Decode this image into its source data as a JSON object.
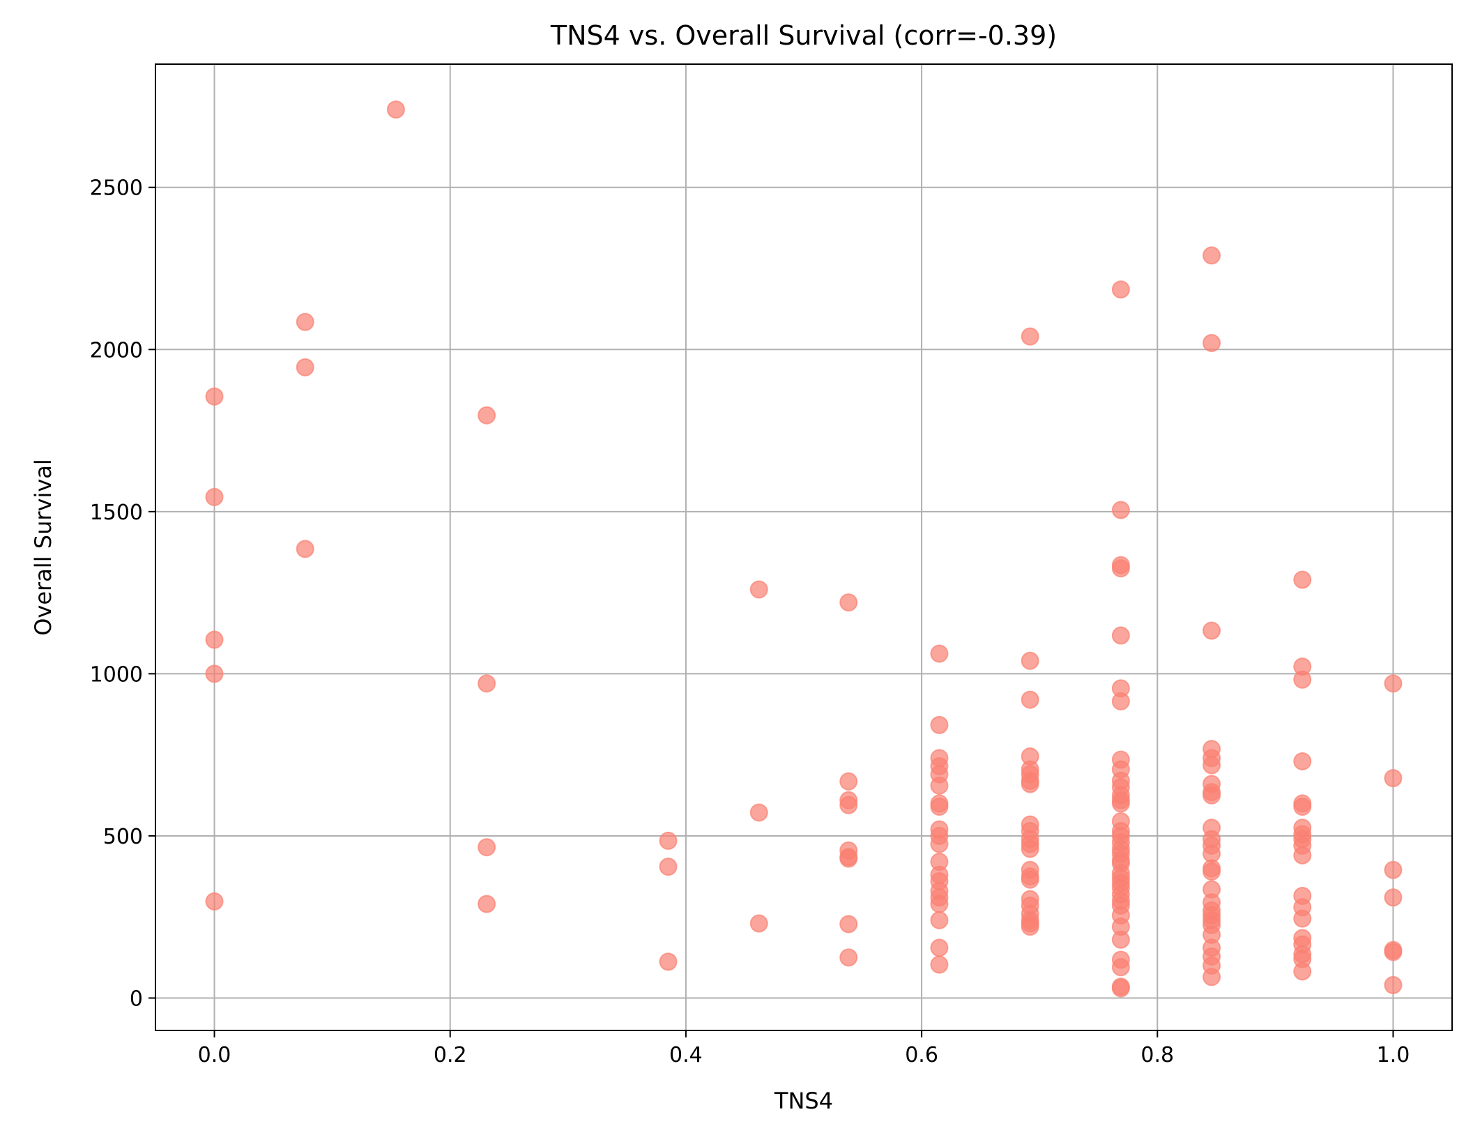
{
  "chart_data": {
    "type": "scatter",
    "title": "TNS4 vs. Overall Survival (corr=-0.39)",
    "xlabel": "TNS4",
    "ylabel": "Overall Survival",
    "xlim": [
      -0.05,
      1.05
    ],
    "ylim": [
      -100,
      2880
    ],
    "xticks": [
      0.0,
      0.2,
      0.4,
      0.6,
      0.8,
      1.0
    ],
    "xtick_labels": [
      "0.0",
      "0.2",
      "0.4",
      "0.6",
      "0.8",
      "1.0"
    ],
    "yticks": [
      0,
      500,
      1000,
      1500,
      2000,
      2500
    ],
    "ytick_labels": [
      "0",
      "500",
      "1000",
      "1500",
      "2000",
      "2500"
    ],
    "grid": true,
    "marker_color": "#fa8072",
    "marker_alpha": 0.7,
    "points": [
      [
        0.0,
        1855
      ],
      [
        0.0,
        1545
      ],
      [
        0.0,
        1105
      ],
      [
        0.0,
        1000
      ],
      [
        0.0,
        298
      ],
      [
        0.077,
        2085
      ],
      [
        0.077,
        1945
      ],
      [
        0.077,
        1385
      ],
      [
        0.154,
        2740
      ],
      [
        0.231,
        1797
      ],
      [
        0.231,
        970
      ],
      [
        0.231,
        465
      ],
      [
        0.231,
        290
      ],
      [
        0.385,
        485
      ],
      [
        0.385,
        405
      ],
      [
        0.385,
        112
      ],
      [
        0.462,
        1260
      ],
      [
        0.462,
        572
      ],
      [
        0.462,
        230
      ],
      [
        0.538,
        1220
      ],
      [
        0.538,
        668
      ],
      [
        0.538,
        610
      ],
      [
        0.538,
        595
      ],
      [
        0.538,
        455
      ],
      [
        0.538,
        435
      ],
      [
        0.538,
        430
      ],
      [
        0.538,
        228
      ],
      [
        0.538,
        125
      ],
      [
        0.615,
        1062
      ],
      [
        0.615,
        842
      ],
      [
        0.615,
        740
      ],
      [
        0.615,
        715
      ],
      [
        0.615,
        690
      ],
      [
        0.615,
        655
      ],
      [
        0.615,
        600
      ],
      [
        0.615,
        590
      ],
      [
        0.615,
        520
      ],
      [
        0.615,
        500
      ],
      [
        0.615,
        475
      ],
      [
        0.615,
        420
      ],
      [
        0.615,
        380
      ],
      [
        0.615,
        360
      ],
      [
        0.615,
        330
      ],
      [
        0.615,
        310
      ],
      [
        0.615,
        290
      ],
      [
        0.615,
        240
      ],
      [
        0.615,
        155
      ],
      [
        0.615,
        103
      ],
      [
        0.692,
        2040
      ],
      [
        0.692,
        1040
      ],
      [
        0.692,
        920
      ],
      [
        0.692,
        745
      ],
      [
        0.692,
        705
      ],
      [
        0.692,
        690
      ],
      [
        0.692,
        670
      ],
      [
        0.692,
        660
      ],
      [
        0.692,
        535
      ],
      [
        0.692,
        515
      ],
      [
        0.692,
        490
      ],
      [
        0.692,
        475
      ],
      [
        0.692,
        460
      ],
      [
        0.692,
        395
      ],
      [
        0.692,
        375
      ],
      [
        0.692,
        365
      ],
      [
        0.692,
        305
      ],
      [
        0.692,
        285
      ],
      [
        0.692,
        260
      ],
      [
        0.692,
        240
      ],
      [
        0.692,
        230
      ],
      [
        0.692,
        220
      ],
      [
        0.769,
        2185
      ],
      [
        0.769,
        1505
      ],
      [
        0.769,
        1335
      ],
      [
        0.769,
        1325
      ],
      [
        0.769,
        1118
      ],
      [
        0.769,
        955
      ],
      [
        0.769,
        915
      ],
      [
        0.769,
        735
      ],
      [
        0.769,
        705
      ],
      [
        0.769,
        670
      ],
      [
        0.769,
        650
      ],
      [
        0.769,
        625
      ],
      [
        0.769,
        610
      ],
      [
        0.769,
        600
      ],
      [
        0.769,
        545
      ],
      [
        0.769,
        515
      ],
      [
        0.769,
        500
      ],
      [
        0.769,
        480
      ],
      [
        0.769,
        460
      ],
      [
        0.769,
        445
      ],
      [
        0.769,
        425
      ],
      [
        0.769,
        415
      ],
      [
        0.769,
        385
      ],
      [
        0.769,
        370
      ],
      [
        0.769,
        355
      ],
      [
        0.769,
        340
      ],
      [
        0.769,
        320
      ],
      [
        0.769,
        300
      ],
      [
        0.769,
        285
      ],
      [
        0.769,
        255
      ],
      [
        0.769,
        220
      ],
      [
        0.769,
        180
      ],
      [
        0.769,
        118
      ],
      [
        0.769,
        95
      ],
      [
        0.769,
        35
      ],
      [
        0.769,
        30
      ],
      [
        0.846,
        2290
      ],
      [
        0.846,
        2020
      ],
      [
        0.846,
        1133
      ],
      [
        0.846,
        768
      ],
      [
        0.846,
        740
      ],
      [
        0.846,
        718
      ],
      [
        0.846,
        660
      ],
      [
        0.846,
        635
      ],
      [
        0.846,
        625
      ],
      [
        0.846,
        525
      ],
      [
        0.846,
        490
      ],
      [
        0.846,
        470
      ],
      [
        0.846,
        445
      ],
      [
        0.846,
        400
      ],
      [
        0.846,
        390
      ],
      [
        0.846,
        335
      ],
      [
        0.846,
        295
      ],
      [
        0.846,
        270
      ],
      [
        0.846,
        255
      ],
      [
        0.846,
        240
      ],
      [
        0.846,
        225
      ],
      [
        0.846,
        195
      ],
      [
        0.846,
        155
      ],
      [
        0.846,
        128
      ],
      [
        0.846,
        100
      ],
      [
        0.846,
        65
      ],
      [
        0.923,
        1290
      ],
      [
        0.923,
        1022
      ],
      [
        0.923,
        982
      ],
      [
        0.923,
        730
      ],
      [
        0.923,
        600
      ],
      [
        0.923,
        590
      ],
      [
        0.923,
        525
      ],
      [
        0.923,
        505
      ],
      [
        0.923,
        490
      ],
      [
        0.923,
        470
      ],
      [
        0.923,
        440
      ],
      [
        0.923,
        315
      ],
      [
        0.923,
        280
      ],
      [
        0.923,
        245
      ],
      [
        0.923,
        185
      ],
      [
        0.923,
        165
      ],
      [
        0.923,
        135
      ],
      [
        0.923,
        120
      ],
      [
        0.923,
        82
      ],
      [
        1.0,
        970
      ],
      [
        1.0,
        678
      ],
      [
        1.0,
        395
      ],
      [
        1.0,
        310
      ],
      [
        1.0,
        148
      ],
      [
        1.0,
        142
      ],
      [
        1.0,
        40
      ]
    ]
  }
}
